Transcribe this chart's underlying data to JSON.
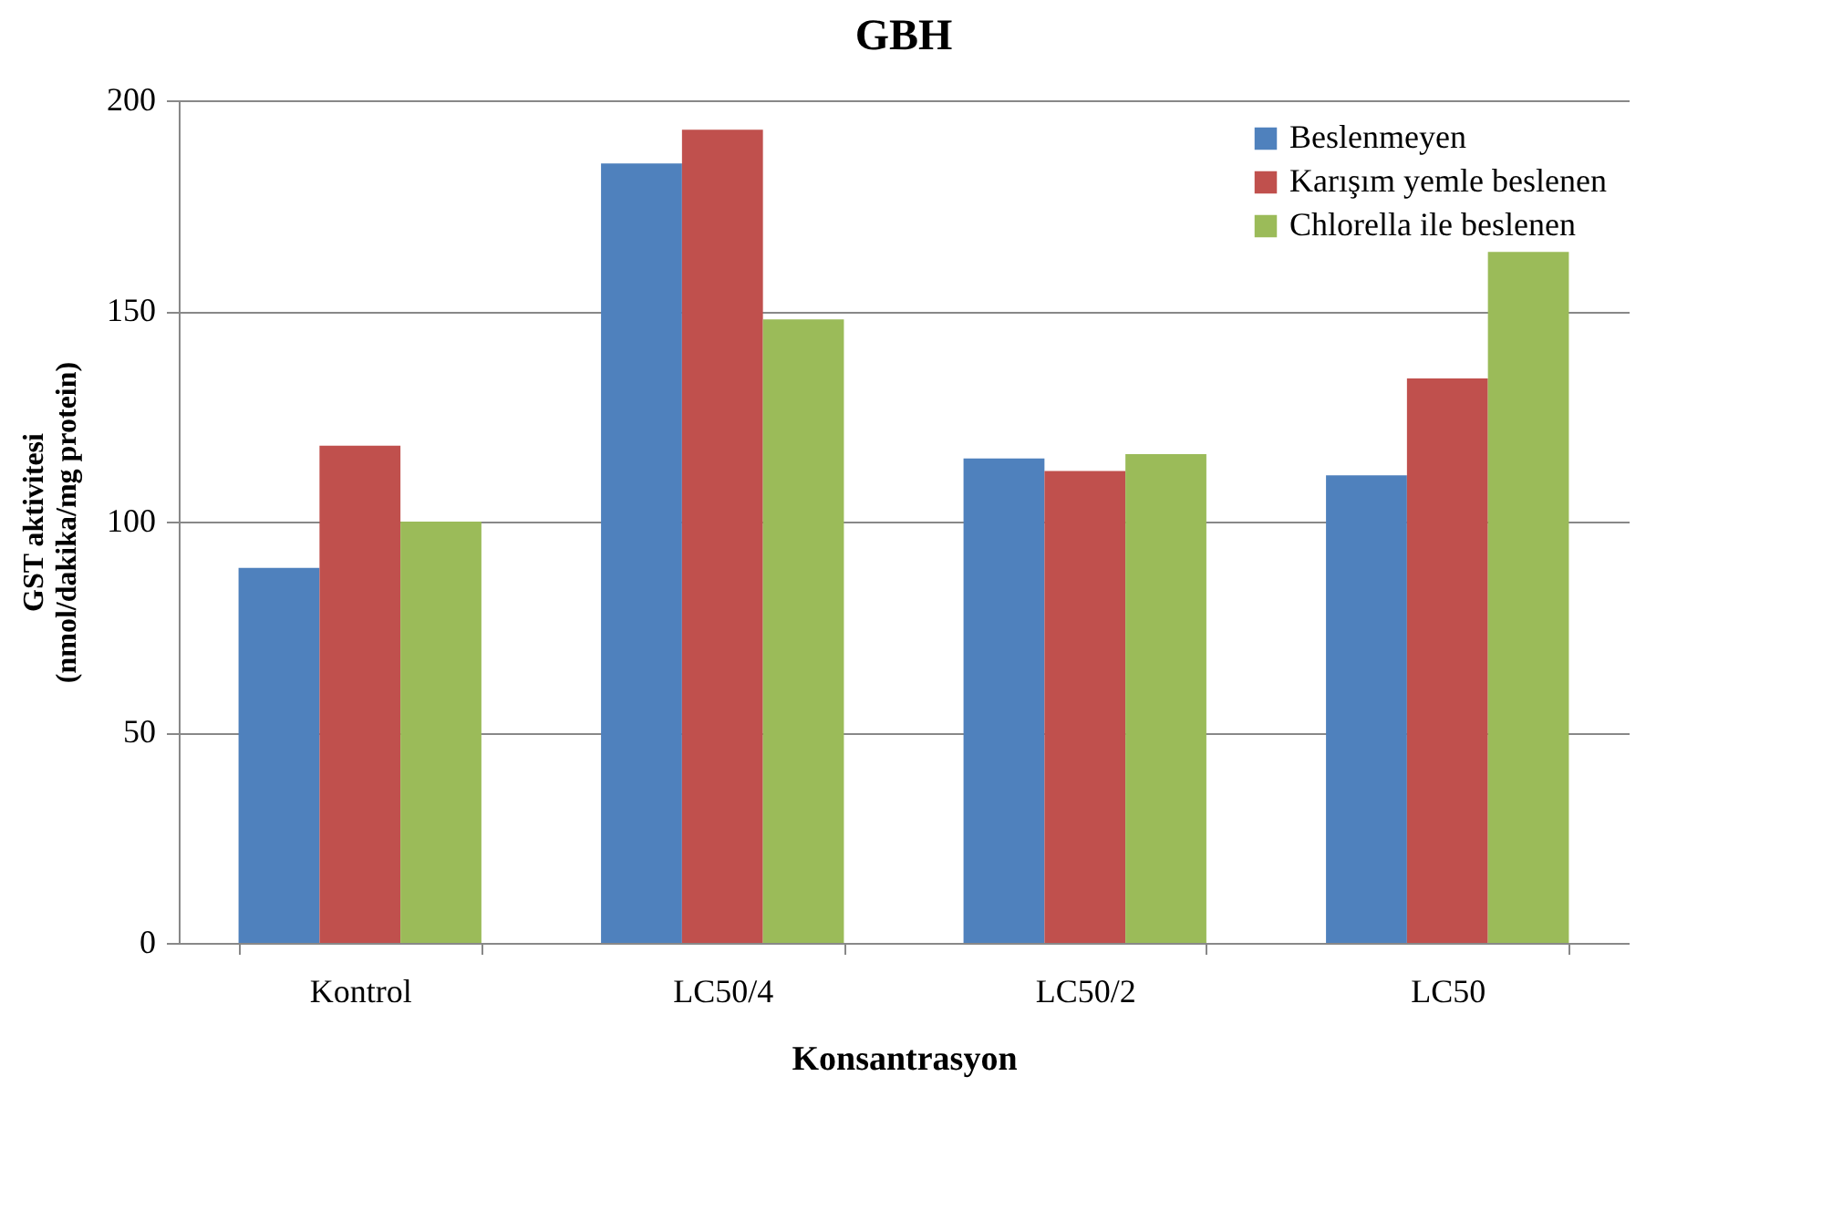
{
  "chart_data": {
    "type": "bar",
    "title": "GBH",
    "xlabel": "Konsantrasyon",
    "ylabel": "GST aktivitesi\n(nmol/dakika/mg protein)",
    "categories": [
      "Kontrol",
      "LC50/4",
      "LC50/2",
      "LC50"
    ],
    "series": [
      {
        "name": "Beslenmeyen",
        "color": "#4f81bd",
        "values": [
          89,
          185,
          115,
          111
        ]
      },
      {
        "name": "Karışım yemle beslenen",
        "color": "#c0504d",
        "values": [
          118,
          193,
          112,
          134
        ]
      },
      {
        "name": "Chlorella ile beslenen",
        "color": "#9bbb59",
        "values": [
          100,
          148,
          116,
          164
        ]
      }
    ],
    "ylim": [
      0,
      200
    ],
    "yticks": [
      0,
      50,
      100,
      150,
      200
    ],
    "grid": "y",
    "legend": "top right"
  }
}
